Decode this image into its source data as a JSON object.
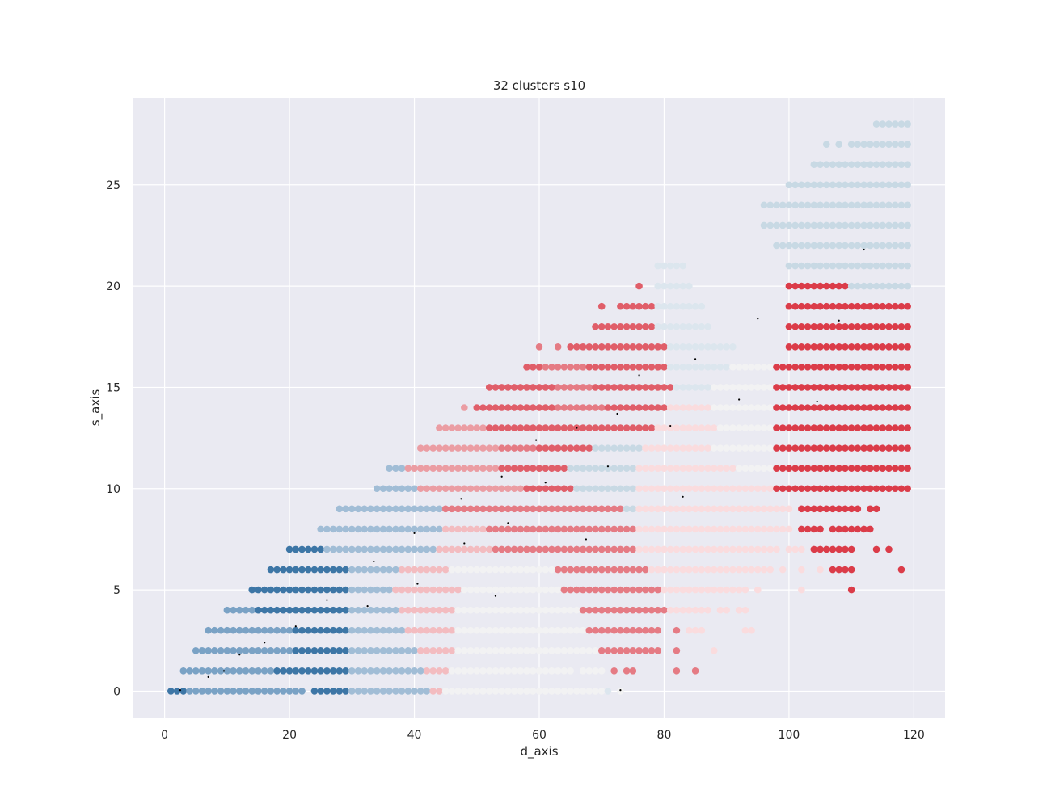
{
  "chart_data": {
    "type": "scatter",
    "title": "32  clusters s10",
    "xlabel": "d_axis",
    "ylabel": "s_axis",
    "xlim": [
      -5,
      125
    ],
    "ylim": [
      -1.3,
      29.3
    ],
    "xticks": [
      0,
      20,
      40,
      60,
      80,
      100,
      120
    ],
    "yticks": [
      0,
      5,
      10,
      15,
      20,
      25
    ],
    "grid": true,
    "legend": "none",
    "colors": {
      "background": "#eaeaf2",
      "grid": "#ffffff",
      "centroid": "#000000",
      "palette": [
        "#3d76a6",
        "#7aa2c5",
        "#a1bdd6",
        "#c8d9e4",
        "#dce6ee",
        "#f2f2f3",
        "#fadcde",
        "#f3bcc0",
        "#eb9da3",
        "#e57b84",
        "#e05e69",
        "#db3c49"
      ]
    },
    "rows": [
      {
        "y": 0,
        "segments": [
          [
            1,
            3,
            0
          ],
          [
            4,
            22,
            1
          ],
          [
            24,
            29,
            0
          ],
          [
            30,
            42,
            2
          ],
          [
            43,
            44,
            7
          ],
          [
            45,
            70,
            5
          ],
          [
            71,
            71,
            4
          ],
          [
            73,
            73,
            5
          ]
        ]
      },
      {
        "y": 1,
        "segments": [
          [
            3,
            17,
            1
          ],
          [
            18,
            29,
            0
          ],
          [
            30,
            41,
            2
          ],
          [
            42,
            45,
            7
          ],
          [
            46,
            65,
            5
          ],
          [
            67,
            70,
            5
          ],
          [
            72,
            72,
            9
          ],
          [
            74,
            75,
            9
          ],
          [
            82,
            82,
            9
          ],
          [
            85,
            85,
            9
          ]
        ]
      },
      {
        "y": 2,
        "segments": [
          [
            5,
            20,
            1
          ],
          [
            21,
            29,
            0
          ],
          [
            30,
            40,
            2
          ],
          [
            41,
            46,
            7
          ],
          [
            47,
            69,
            5
          ],
          [
            70,
            79,
            9
          ],
          [
            82,
            82,
            9
          ],
          [
            88,
            88,
            6
          ]
        ]
      },
      {
        "y": 3,
        "segments": [
          [
            7,
            20,
            1
          ],
          [
            21,
            29,
            0
          ],
          [
            30,
            38,
            2
          ],
          [
            39,
            46,
            7
          ],
          [
            47,
            67,
            5
          ],
          [
            68,
            79,
            9
          ],
          [
            82,
            82,
            9
          ],
          [
            84,
            86,
            6
          ],
          [
            93,
            94,
            6
          ]
        ]
      },
      {
        "y": 4,
        "segments": [
          [
            10,
            14,
            1
          ],
          [
            15,
            29,
            0
          ],
          [
            30,
            37,
            2
          ],
          [
            38,
            46,
            7
          ],
          [
            47,
            66,
            5
          ],
          [
            67,
            80,
            9
          ],
          [
            81,
            87,
            6
          ],
          [
            89,
            90,
            6
          ],
          [
            92,
            93,
            6
          ]
        ]
      },
      {
        "y": 5,
        "segments": [
          [
            14,
            29,
            0
          ],
          [
            30,
            36,
            2
          ],
          [
            37,
            47,
            7
          ],
          [
            48,
            63,
            5
          ],
          [
            64,
            79,
            9
          ],
          [
            80,
            93,
            6
          ],
          [
            95,
            95,
            6
          ],
          [
            102,
            102,
            6
          ],
          [
            110,
            110,
            11
          ]
        ]
      },
      {
        "y": 6,
        "segments": [
          [
            17,
            29,
            0
          ],
          [
            30,
            37,
            2
          ],
          [
            38,
            45,
            7
          ],
          [
            46,
            58,
            5
          ],
          [
            59,
            62,
            5
          ],
          [
            63,
            77,
            9
          ],
          [
            78,
            97,
            6
          ],
          [
            99,
            99,
            6
          ],
          [
            102,
            102,
            6
          ],
          [
            105,
            105,
            6
          ],
          [
            107,
            110,
            11
          ],
          [
            118,
            118,
            11
          ]
        ]
      },
      {
        "y": 7,
        "segments": [
          [
            20,
            25,
            0
          ],
          [
            26,
            43,
            2
          ],
          [
            44,
            52,
            7
          ],
          [
            53,
            75,
            9
          ],
          [
            76,
            98,
            6
          ],
          [
            100,
            102,
            6
          ],
          [
            104,
            110,
            11
          ],
          [
            114,
            114,
            11
          ],
          [
            116,
            116,
            11
          ]
        ]
      },
      {
        "y": 8,
        "segments": [
          [
            25,
            44,
            2
          ],
          [
            45,
            51,
            7
          ],
          [
            52,
            75,
            9
          ],
          [
            76,
            100,
            6
          ],
          [
            102,
            105,
            11
          ],
          [
            107,
            113,
            11
          ]
        ]
      },
      {
        "y": 9,
        "segments": [
          [
            28,
            44,
            2
          ],
          [
            45,
            64,
            9
          ],
          [
            65,
            73,
            9
          ],
          [
            74,
            75,
            3
          ],
          [
            76,
            100,
            6
          ],
          [
            102,
            111,
            11
          ],
          [
            113,
            114,
            11
          ]
        ]
      },
      {
        "y": 10,
        "segments": [
          [
            34,
            40,
            2
          ],
          [
            41,
            57,
            8
          ],
          [
            58,
            65,
            10
          ],
          [
            66,
            75,
            3
          ],
          [
            76,
            97,
            6
          ],
          [
            98,
            119,
            11
          ]
        ]
      },
      {
        "y": 11,
        "segments": [
          [
            36,
            38,
            2
          ],
          [
            39,
            53,
            8
          ],
          [
            54,
            64,
            10
          ],
          [
            65,
            75,
            3
          ],
          [
            76,
            91,
            6
          ],
          [
            92,
            97,
            5
          ],
          [
            98,
            119,
            11
          ]
        ]
      },
      {
        "y": 12,
        "segments": [
          [
            41,
            53,
            8
          ],
          [
            54,
            59,
            9
          ],
          [
            60,
            68,
            10
          ],
          [
            69,
            76,
            3
          ],
          [
            77,
            87,
            6
          ],
          [
            88,
            97,
            5
          ],
          [
            98,
            119,
            11
          ]
        ]
      },
      {
        "y": 13,
        "segments": [
          [
            44,
            51,
            8
          ],
          [
            52,
            70,
            10
          ],
          [
            71,
            78,
            10
          ],
          [
            79,
            88,
            6
          ],
          [
            89,
            97,
            5
          ],
          [
            98,
            119,
            11
          ]
        ]
      },
      {
        "y": 14,
        "segments": [
          [
            48,
            48,
            8
          ],
          [
            50,
            62,
            10
          ],
          [
            63,
            70,
            9
          ],
          [
            71,
            80,
            10
          ],
          [
            81,
            87,
            6
          ],
          [
            88,
            97,
            5
          ],
          [
            98,
            119,
            11
          ]
        ]
      },
      {
        "y": 15,
        "segments": [
          [
            52,
            62,
            10
          ],
          [
            63,
            68,
            9
          ],
          [
            69,
            81,
            10
          ],
          [
            82,
            87,
            4
          ],
          [
            88,
            97,
            5
          ],
          [
            98,
            119,
            11
          ]
        ]
      },
      {
        "y": 16,
        "segments": [
          [
            58,
            60,
            10
          ],
          [
            61,
            67,
            9
          ],
          [
            68,
            80,
            10
          ],
          [
            81,
            90,
            4
          ],
          [
            91,
            97,
            5
          ],
          [
            98,
            119,
            11
          ]
        ]
      },
      {
        "y": 17,
        "segments": [
          [
            60,
            60,
            9
          ],
          [
            63,
            63,
            9
          ],
          [
            65,
            80,
            10
          ],
          [
            81,
            91,
            4
          ],
          [
            100,
            119,
            11
          ]
        ]
      },
      {
        "y": 18,
        "segments": [
          [
            69,
            78,
            10
          ],
          [
            79,
            87,
            4
          ],
          [
            100,
            119,
            11
          ]
        ]
      },
      {
        "y": 19,
        "segments": [
          [
            70,
            70,
            10
          ],
          [
            73,
            78,
            10
          ],
          [
            79,
            86,
            4
          ],
          [
            100,
            119,
            11
          ]
        ]
      },
      {
        "y": 20,
        "segments": [
          [
            76,
            76,
            10
          ],
          [
            79,
            84,
            4
          ],
          [
            100,
            109,
            11
          ],
          [
            110,
            119,
            3
          ]
        ]
      },
      {
        "y": 21,
        "segments": [
          [
            79,
            83,
            4
          ],
          [
            100,
            119,
            3
          ]
        ]
      },
      {
        "y": 22,
        "segments": [
          [
            98,
            119,
            3
          ]
        ]
      },
      {
        "y": 23,
        "segments": [
          [
            96,
            119,
            3
          ]
        ]
      },
      {
        "y": 24,
        "segments": [
          [
            96,
            119,
            3
          ]
        ]
      },
      {
        "y": 25,
        "segments": [
          [
            100,
            119,
            3
          ]
        ]
      },
      {
        "y": 26,
        "segments": [
          [
            104,
            119,
            3
          ]
        ]
      },
      {
        "y": 27,
        "segments": [
          [
            106,
            106,
            3
          ],
          [
            108,
            108,
            3
          ],
          [
            110,
            119,
            3
          ]
        ]
      },
      {
        "y": 28,
        "segments": [
          [
            114,
            119,
            3
          ]
        ]
      }
    ],
    "centroids": [
      [
        2.5,
        0.05
      ],
      [
        9.5,
        1.0
      ],
      [
        12,
        1.8
      ],
      [
        16,
        2.4
      ],
      [
        7,
        0.7
      ],
      [
        21,
        3.2
      ],
      [
        26,
        4.5
      ],
      [
        32.5,
        4.2
      ],
      [
        33.5,
        6.4
      ],
      [
        40.5,
        5.3
      ],
      [
        40,
        7.8
      ],
      [
        48,
        7.3
      ],
      [
        53,
        4.7
      ],
      [
        47.5,
        9.5
      ],
      [
        55,
        8.3
      ],
      [
        54,
        10.6
      ],
      [
        61,
        10.3
      ],
      [
        59.5,
        12.4
      ],
      [
        66,
        13.0
      ],
      [
        71,
        11.1
      ],
      [
        67.5,
        7.5
      ],
      [
        72.5,
        13.7
      ],
      [
        76,
        15.6
      ],
      [
        81,
        13.1
      ],
      [
        83,
        9.6
      ],
      [
        85,
        16.4
      ],
      [
        92,
        14.4
      ],
      [
        95,
        18.4
      ],
      [
        104.5,
        14.3
      ],
      [
        108,
        18.3
      ],
      [
        112,
        21.8
      ],
      [
        73,
        0.05
      ]
    ]
  }
}
